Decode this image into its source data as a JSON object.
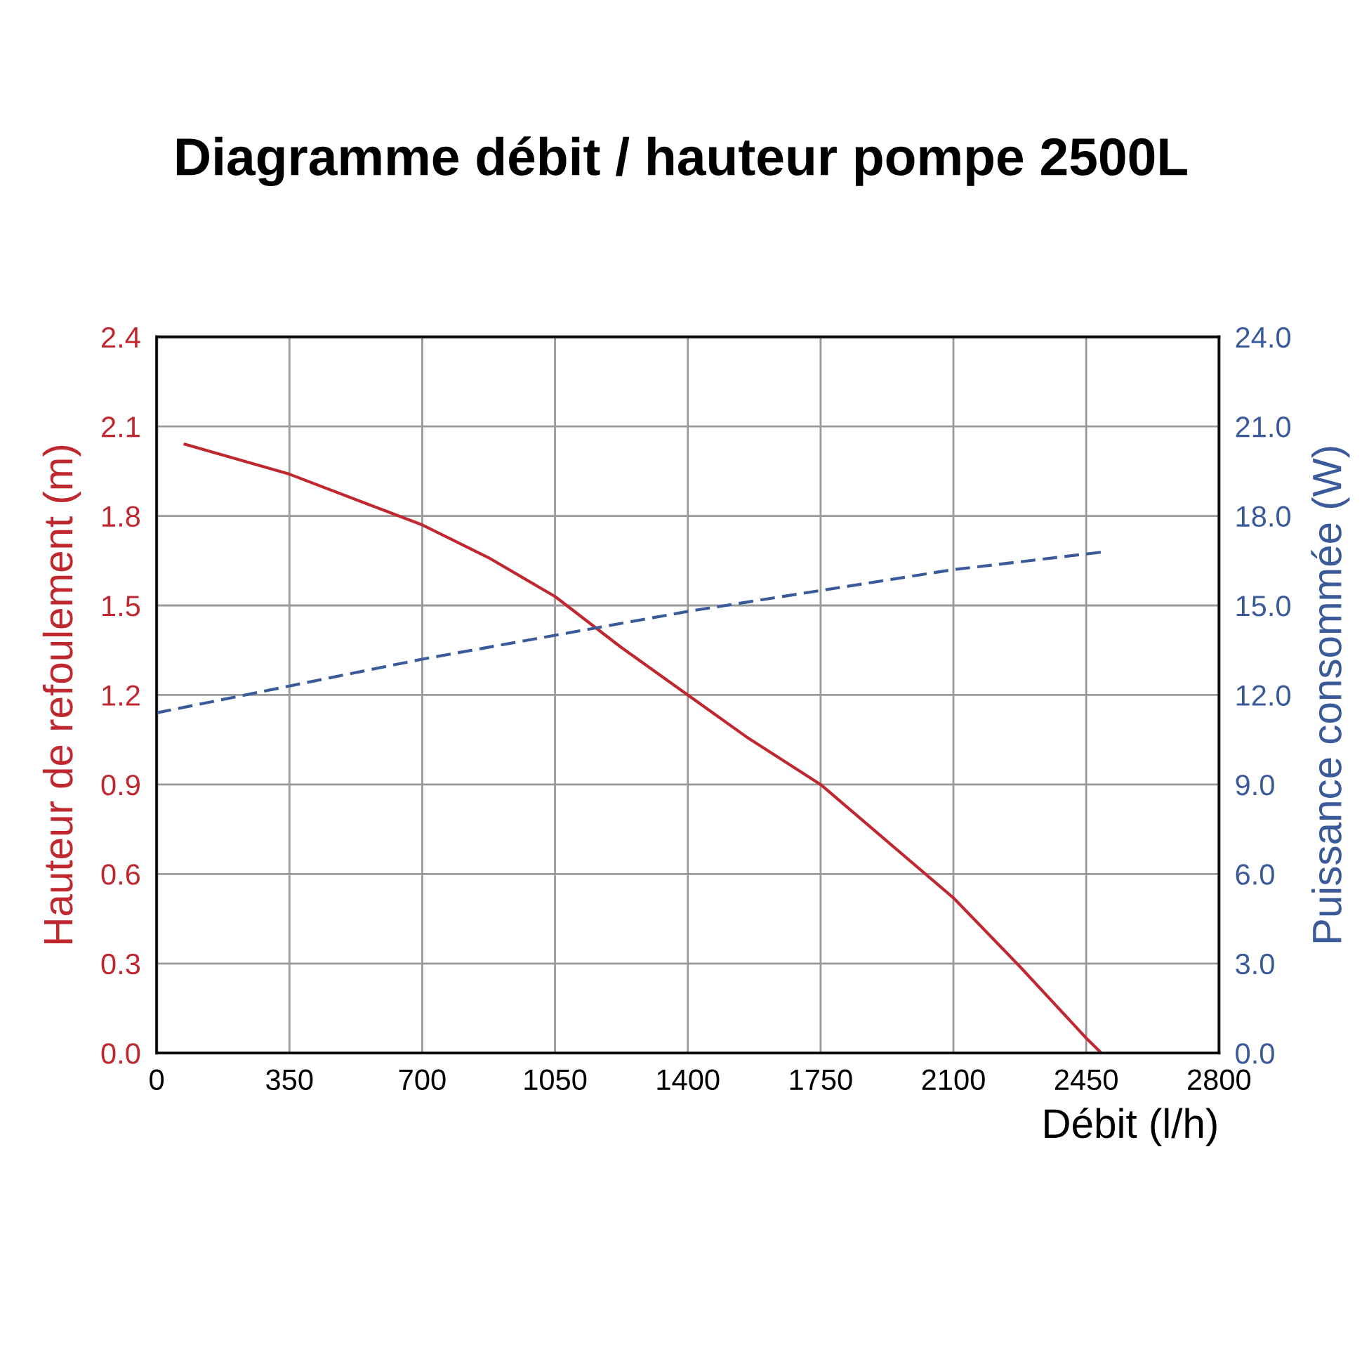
{
  "chart_data": {
    "type": "line",
    "title": "Diagramme débit / hauteur pompe 2500L",
    "xlabel": "Débit (l/h)",
    "ylabel": "Hauteur de refoulement (m)",
    "y2label": "Puissance consommée (W)",
    "xlim": [
      0,
      2800
    ],
    "xticks": [
      0,
      350,
      700,
      1050,
      1400,
      1750,
      2100,
      2450,
      2800
    ],
    "ylim": [
      0,
      2.4
    ],
    "yticks": [
      {
        "value": 0,
        "label": "0.0"
      },
      0.3,
      0.6,
      0.9,
      1.2,
      1.5,
      1.8,
      2.1,
      2.4
    ],
    "y2lim": [
      0,
      24
    ],
    "y2ticks": [
      {
        "value": 0,
        "label": "0.0"
      },
      {
        "value": 3,
        "label": "3.0"
      },
      {
        "value": 6,
        "label": "6.0"
      },
      {
        "value": 9,
        "label": "9.0"
      },
      {
        "value": 12,
        "label": "12.0"
      },
      {
        "value": 15,
        "label": "15.0"
      },
      {
        "value": 18,
        "label": "18.0"
      },
      {
        "value": 21,
        "label": "21.0"
      },
      {
        "value": 24,
        "label": "24.0"
      }
    ],
    "grid": true,
    "series": [
      {
        "color": "#c0282f",
        "line_style": "solid",
        "x": [
          75,
          350,
          700,
          875,
          1050,
          1224,
          1400,
          1554,
          1750,
          1925,
          2100,
          2275,
          2450,
          2490
        ],
        "values": [
          2.04,
          1.94,
          1.77,
          1.66,
          1.53,
          1.36,
          1.2,
          1.06,
          0.9,
          0.71,
          0.52,
          0.29,
          0.05,
          0
        ]
      },
      {
        "color": "#3a5a9a",
        "line_style": "dashed",
        "axis": "y2",
        "x": [
          0,
          350,
          700,
          1050,
          1400,
          1750,
          2100,
          2500
        ],
        "values": [
          11.4,
          12.3,
          13.2,
          14.0,
          14.8,
          15.5,
          16.2,
          16.8
        ]
      }
    ]
  }
}
